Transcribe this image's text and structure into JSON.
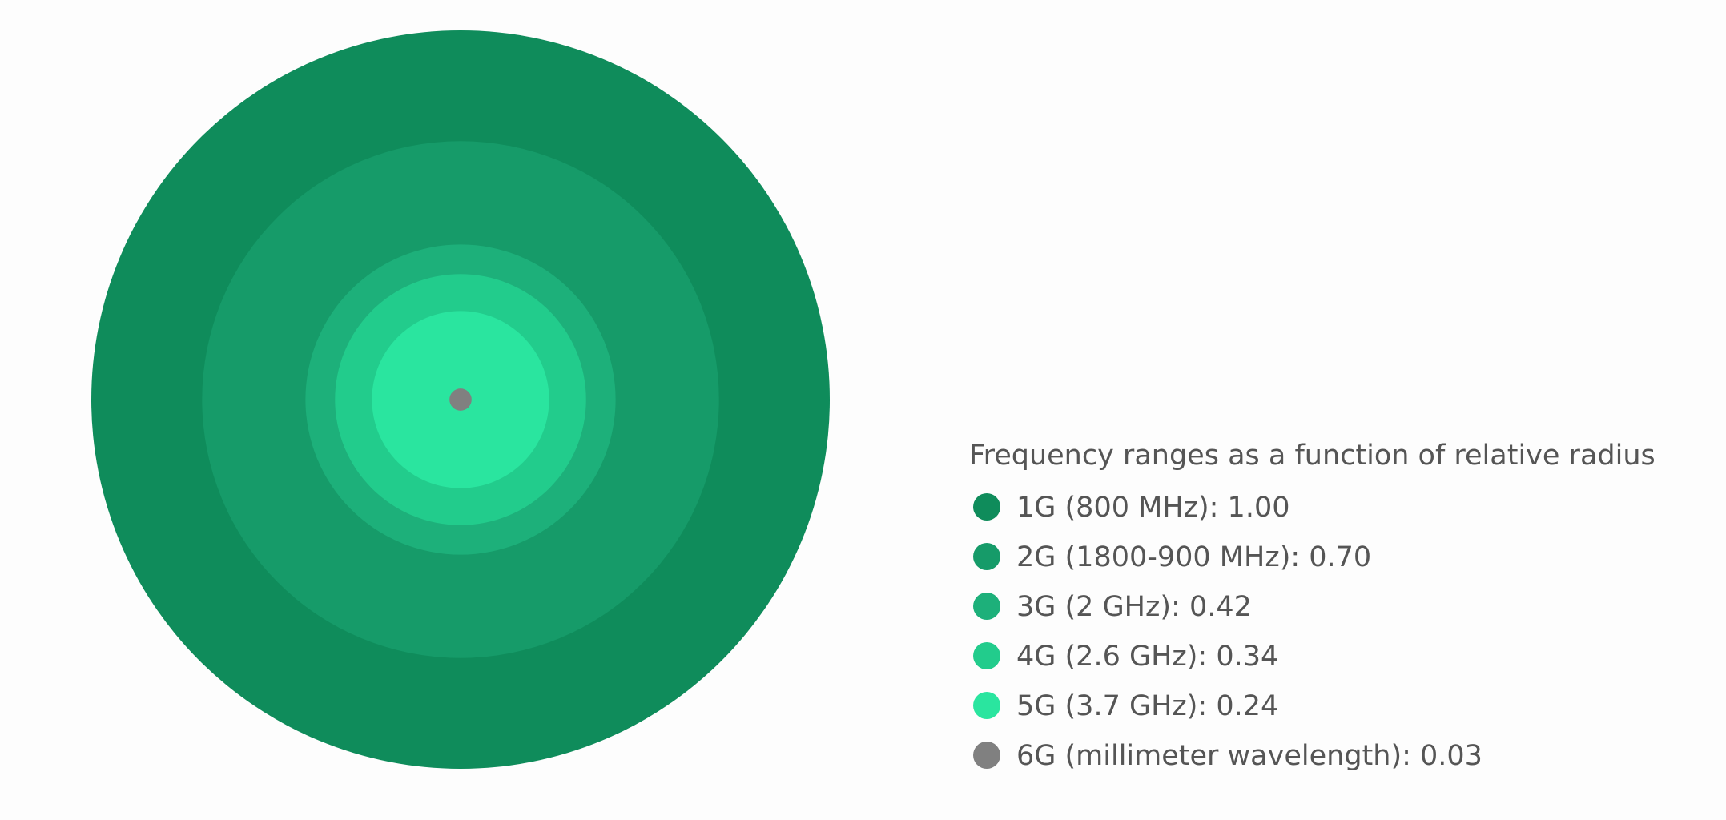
{
  "chart_data": {
    "type": "concentric-circles",
    "title": "Frequency ranges as a function of relative radius",
    "series": [
      {
        "name": "1G (800 MHz)",
        "value": 1.0,
        "label": "1.00",
        "color": "#0f8c5b"
      },
      {
        "name": "2G (1800-900 MHz)",
        "value": 0.7,
        "label": "0.70",
        "color": "#169b69"
      },
      {
        "name": "3G (2 GHz)",
        "value": 0.42,
        "label": "0.42",
        "color": "#1db07a"
      },
      {
        "name": "4G (2.6 GHz)",
        "value": 0.34,
        "label": "0.34",
        "color": "#22cc8c"
      },
      {
        "name": "5G (3.7 GHz)",
        "value": 0.24,
        "label": "0.24",
        "color": "#2ae59f"
      },
      {
        "name": "6G (millimeter wavelength)",
        "value": 0.03,
        "label": "0.03",
        "color": "#808080"
      }
    ],
    "legend_position": "right"
  }
}
